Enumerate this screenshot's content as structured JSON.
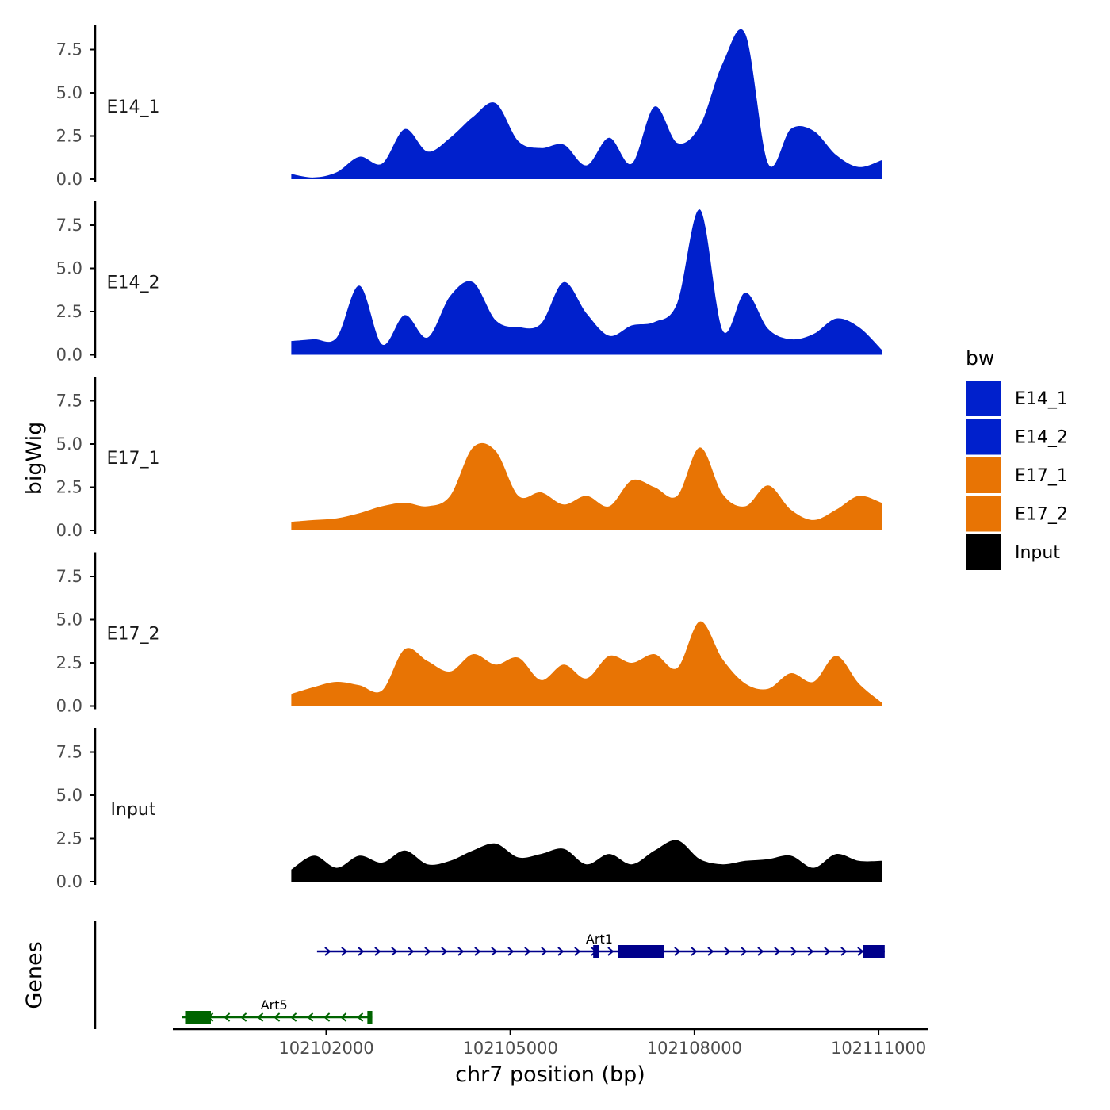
{
  "chart_data": {
    "type": "area",
    "ylabel": "bigWig",
    "xlabel": "chr7 position (bp)",
    "genes_label": "Genes",
    "y_ticks": [
      "0.0",
      "2.5",
      "5.0",
      "7.5"
    ],
    "y_tick_values": [
      0,
      2.5,
      5,
      7.5
    ],
    "ylim": [
      0,
      8.9
    ],
    "xlim": [
      102099500,
      102111800
    ],
    "x_ticks": [
      "102102000",
      "102105000",
      "102108000",
      "102111000"
    ],
    "x_tick_values": [
      102102000,
      102105000,
      102108000,
      102111000
    ],
    "legend": {
      "title": "bw",
      "position": "right",
      "entries": [
        {
          "label": "E14_1",
          "color": "#0020CC"
        },
        {
          "label": "E14_2",
          "color": "#0020CC"
        },
        {
          "label": "E17_1",
          "color": "#E87404"
        },
        {
          "label": "E17_2",
          "color": "#E87404"
        },
        {
          "label": "Input",
          "color": "#000000"
        }
      ]
    },
    "x": [
      102101430,
      102101800,
      102102170,
      102102540,
      102102910,
      102103280,
      102103650,
      102104020,
      102104390,
      102104760,
      102105130,
      102105500,
      102105870,
      102106240,
      102106610,
      102106980,
      102107350,
      102107720,
      102108090,
      102108460,
      102108830,
      102109200,
      102109570,
      102109940,
      102110310,
      102110680,
      102111050
    ],
    "series": [
      {
        "name": "E14_1",
        "color": "#0020CC",
        "values": [
          0.3,
          0.1,
          0.4,
          1.3,
          0.9,
          2.9,
          1.6,
          2.4,
          3.6,
          4.4,
          2.2,
          1.8,
          2.0,
          0.8,
          2.4,
          0.9,
          4.2,
          2.1,
          3.1,
          6.7,
          8.4,
          0.9,
          2.9,
          2.8,
          1.4,
          0.7,
          1.1
        ]
      },
      {
        "name": "E14_2",
        "color": "#0020CC",
        "values": [
          0.8,
          0.9,
          1.0,
          4.0,
          0.6,
          2.3,
          1.0,
          3.4,
          4.2,
          2.0,
          1.6,
          1.8,
          4.2,
          2.4,
          1.1,
          1.7,
          1.9,
          3.0,
          8.4,
          1.4,
          3.6,
          1.5,
          0.9,
          1.2,
          2.1,
          1.6,
          0.3
        ]
      },
      {
        "name": "E17_1",
        "color": "#E87404",
        "values": [
          0.5,
          0.6,
          0.7,
          1.0,
          1.4,
          1.6,
          1.4,
          2.0,
          4.8,
          4.6,
          2.0,
          2.2,
          1.5,
          2.0,
          1.4,
          2.9,
          2.5,
          2.0,
          4.8,
          2.1,
          1.4,
          2.6,
          1.2,
          0.6,
          1.2,
          2.0,
          1.6
        ]
      },
      {
        "name": "E17_2",
        "color": "#E87404",
        "values": [
          0.7,
          1.1,
          1.4,
          1.2,
          0.9,
          3.3,
          2.6,
          2.0,
          3.0,
          2.4,
          2.8,
          1.5,
          2.4,
          1.6,
          2.9,
          2.5,
          3.0,
          2.2,
          4.9,
          2.7,
          1.3,
          1.0,
          1.9,
          1.4,
          2.9,
          1.3,
          0.2
        ]
      },
      {
        "name": "Input",
        "color": "#000000",
        "values": [
          0.7,
          1.5,
          0.8,
          1.5,
          1.1,
          1.8,
          1.0,
          1.2,
          1.8,
          2.2,
          1.4,
          1.6,
          1.9,
          1.0,
          1.6,
          1.0,
          1.8,
          2.4,
          1.3,
          1.0,
          1.2,
          1.3,
          1.5,
          0.8,
          1.6,
          1.2,
          1.2
        ]
      }
    ],
    "genes": [
      {
        "name": "Art1",
        "strand": "+",
        "color": "#00008B",
        "start": 102101850,
        "end": 102111100,
        "label_pos": 102106450,
        "exons": [
          [
            102106350,
            102106450
          ],
          [
            102106750,
            102107500
          ],
          [
            102110750,
            102111100
          ]
        ]
      },
      {
        "name": "Art5",
        "strand": "-",
        "color": "#006400",
        "start": 102099650,
        "end": 102102750,
        "label_pos": 102101150,
        "exons": [
          [
            102099700,
            102100120
          ],
          [
            102102670,
            102102750
          ]
        ]
      }
    ]
  }
}
